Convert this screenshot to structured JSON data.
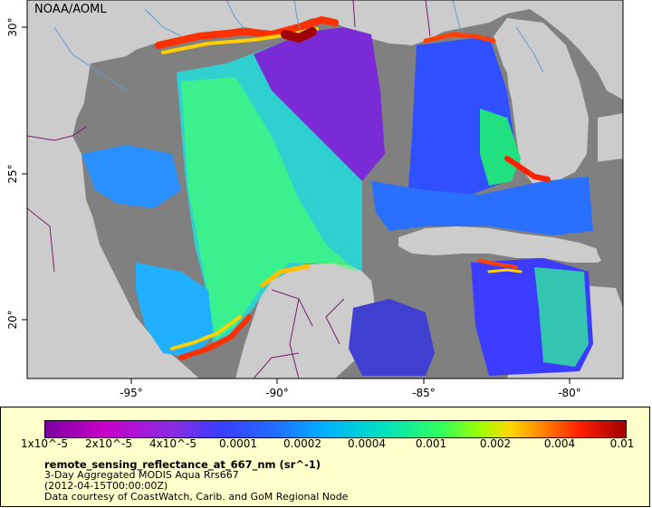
{
  "credit": "NOAA/AOML",
  "axes": {
    "lon_ticks": [
      "-95°",
      "-90°",
      "-85°",
      "-80°"
    ],
    "lat_ticks": [
      "30°",
      "25°",
      "20°"
    ]
  },
  "legend": {
    "ticks": [
      "1x10^-5",
      "2x10^-5",
      "4x10^-5",
      "0.0001",
      "0.0002",
      "0.0004",
      "0.001",
      "0.002",
      "0.004",
      "0.01"
    ],
    "variable": "remote_sensing_reflectance_at_667_nm (sr^-1)",
    "line1": "3-Day Aggregated MODIS Aqua Rrs667",
    "line2": "(2012-04-15T00:00:00Z)",
    "line3": "Data courtesy of CoastWatch, Carib. and GoM Regional Node"
  },
  "colors": {
    "land": "#cccccc",
    "ocean_nodata": "#808080",
    "border": "#7a1d6d",
    "river": "#6699cc",
    "legend_bg": "#ffffcc"
  }
}
